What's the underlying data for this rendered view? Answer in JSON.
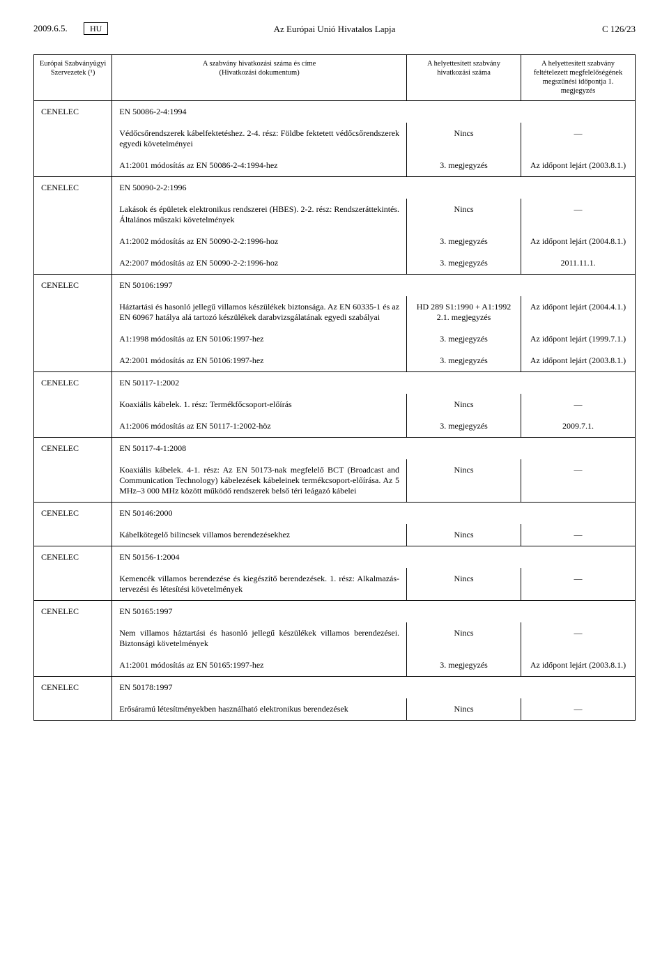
{
  "header": {
    "date": "2009.6.5.",
    "lang_box": "HU",
    "journal": "Az Európai Unió Hivatalos Lapja",
    "page_no": "C 126/23"
  },
  "columns": {
    "a": "Európai Szabványügyi Szervezetek (¹)",
    "b": "A szabvány hivatkozási száma és címe\n(Hivatkozási dokumentum)",
    "c": "A helyettesített szabvány hivatkozási száma",
    "d": "A helyettesített szab­vány feltételezett megfelelőségének megszűnési időpontja 1. megjegyzés"
  },
  "rows": [
    {
      "org": "CENELEC",
      "code": "EN 50086-2-4:1994",
      "lines": [
        {
          "text": "Védőcsőrendszerek kábelfektetéshez. 2-4. rész: Földbe fektetett védőcsőrend­szerek egyedi követelményei",
          "c": "Nincs",
          "d": "—"
        },
        {
          "text": "A1:2001 módosítás az EN 50086-2-4:1994-hez",
          "c": "3. megjegyzés",
          "d": "Az időpont lejárt (2003.8.1.)"
        }
      ]
    },
    {
      "org": "CENELEC",
      "code": "EN 50090-2-2:1996",
      "lines": [
        {
          "text": "Lakások és épületek elektronikus rendszerei (HBES). 2-2. rész: Rendszeráttekintés. Általános műszaki követelmények",
          "c": "Nincs",
          "d": "—"
        },
        {
          "text": "A1:2002 módosítás az EN 50090-2-2:1996-hoz",
          "c": "3. megjegyzés",
          "d": "Az időpont lejárt (2004.8.1.)"
        },
        {
          "text": "A2:2007 módosítás az EN 50090-2-2:1996-hoz",
          "c": "3. megjegyzés",
          "d": "2011.11.1."
        }
      ]
    },
    {
      "org": "CENELEC",
      "code": "EN 50106:1997",
      "lines": [
        {
          "text": "Háztartási és hasonló jellegű villamos készülékek biztonsága. Az EN 60335-1 és az EN 60967 hatálya alá tartozó készülékek darabvizsgálatának egyedi szabályai",
          "c": "HD 289 S1:1990 + A1:1992 2.1. megjegyzés",
          "d": "Az időpont lejárt (2004.4.1.)"
        },
        {
          "text": "A1:1998 módosítás az EN 50106:1997-hez",
          "c": "3. megjegyzés",
          "d": "Az időpont lejárt (1999.7.1.)"
        },
        {
          "text": "A2:2001 módosítás az EN 50106:1997-hez",
          "c": "3. megjegyzés",
          "d": "Az időpont lejárt (2003.8.1.)"
        }
      ]
    },
    {
      "org": "CENELEC",
      "code": "EN 50117-1:2002",
      "lines": [
        {
          "text": "Koaxiális kábelek. 1. rész: Termékfőcsoport-előírás",
          "c": "Nincs",
          "d": "—"
        },
        {
          "text": "A1:2006 módosítás az EN 50117-1:2002-höz",
          "c": "3. megjegyzés",
          "d": "2009.7.1."
        }
      ]
    },
    {
      "org": "CENELEC",
      "code": "EN 50117-4-1:2008",
      "lines": [
        {
          "text": "Koaxiális kábelek. 4-1. rész: Az EN 50173-nak megfelelő BCT (Broadcast and Communication Technology) kábelezések kábeleinek termékcsoport-előírása. Az 5 MHz–3 000 MHz között működő rendszerek belső téri leágazó kábelei",
          "c": "Nincs",
          "d": "—"
        }
      ]
    },
    {
      "org": "CENELEC",
      "code": "EN 50146:2000",
      "lines": [
        {
          "text": "Kábelkötegelő bilincsek villamos berendezésekhez",
          "c": "Nincs",
          "d": "—"
        }
      ]
    },
    {
      "org": "CENELEC",
      "code": "EN 50156-1:2004",
      "lines": [
        {
          "text": "Kemencék villamos berendezése és kiegészítő berendezések. 1. rész: Alkalmazás­tervezési és létesítési követelmények",
          "c": "Nincs",
          "d": "—"
        }
      ]
    },
    {
      "org": "CENELEC",
      "code": "EN 50165:1997",
      "lines": [
        {
          "text": "Nem villamos háztartási és hasonló jellegű készülékek villamos berendezései. Biztonsági követelmények",
          "c": "Nincs",
          "d": "—"
        },
        {
          "text": "A1:2001 módosítás az EN 50165:1997-hez",
          "c": "3. megjegyzés",
          "d": "Az időpont lejárt (2003.8.1.)"
        }
      ]
    },
    {
      "org": "CENELEC",
      "code": "EN 50178:1997",
      "lines": [
        {
          "text": "Erősáramú létesítményekben használható elektronikus berendezések",
          "c": "Nincs",
          "d": "—"
        }
      ]
    }
  ]
}
